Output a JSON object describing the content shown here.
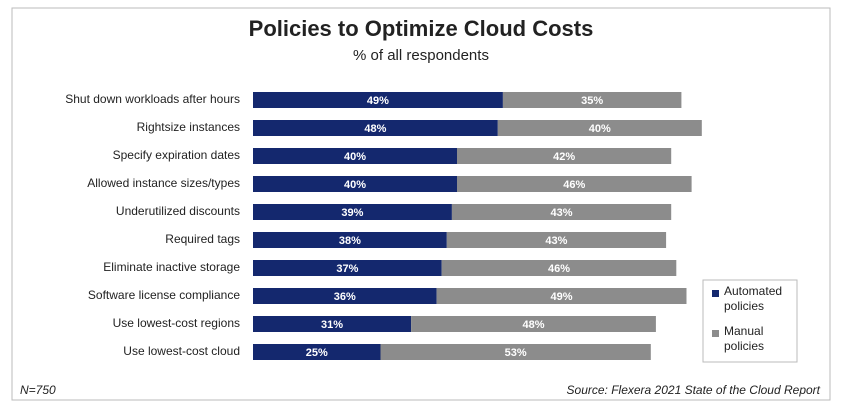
{
  "chart_data": {
    "type": "stacked-bar-horizontal",
    "title": "Policies to Optimize Cloud Costs",
    "subtitle": "% of all respondents",
    "categories": [
      "Shut down workloads after hours",
      "Rightsize instances",
      "Specify expiration dates",
      "Allowed instance sizes/types",
      "Underutilized discounts",
      "Required tags",
      "Eliminate inactive storage",
      "Software license compliance",
      "Use lowest-cost regions",
      "Use lowest-cost cloud"
    ],
    "series": [
      {
        "name": "Automated policies",
        "color": "#14286e",
        "values": [
          49,
          48,
          40,
          40,
          39,
          38,
          37,
          36,
          31,
          25
        ],
        "value_labels": [
          "49%",
          "48%",
          "40%",
          "40%",
          "39%",
          "38%",
          "37%",
          "36%",
          "31%",
          "25%"
        ]
      },
      {
        "name": "Manual policies",
        "color": "#8c8c8c",
        "values": [
          35,
          40,
          42,
          46,
          43,
          43,
          46,
          49,
          48,
          53
        ],
        "value_labels": [
          "35%",
          "40%",
          "42%",
          "46%",
          "43%",
          "43%",
          "46%",
          "49%",
          "48%",
          "53%"
        ]
      }
    ],
    "note": "N=750",
    "source": "Source: Flexera 2021 State of the Cloud Report"
  }
}
